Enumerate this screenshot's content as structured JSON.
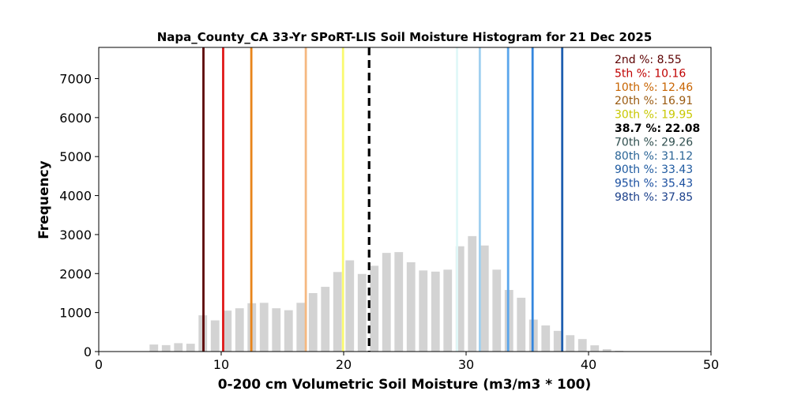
{
  "chart_data": {
    "type": "bar",
    "title": "Napa_County_CA 33-Yr SPoRT-LIS Soil Moisture Histogram for 21 Dec 2025",
    "xlabel": "0-200 cm Volumetric Soil Moisture (m3/m3 * 100)",
    "ylabel": "Frequency",
    "xlim": [
      0,
      50
    ],
    "ylim": [
      0,
      7800
    ],
    "xticks": [
      0,
      10,
      20,
      30,
      40,
      50
    ],
    "yticks": [
      0,
      1000,
      2000,
      3000,
      4000,
      5000,
      6000,
      7000
    ],
    "bar_color": "#d3d3d3",
    "bar_width": 0.7,
    "bins": [
      {
        "x": 4.5,
        "count": 180
      },
      {
        "x": 5.5,
        "count": 165
      },
      {
        "x": 6.5,
        "count": 215
      },
      {
        "x": 7.5,
        "count": 200
      },
      {
        "x": 8.5,
        "count": 930
      },
      {
        "x": 9.5,
        "count": 800
      },
      {
        "x": 10.5,
        "count": 1050
      },
      {
        "x": 11.5,
        "count": 1110
      },
      {
        "x": 12.5,
        "count": 1240
      },
      {
        "x": 13.5,
        "count": 1250
      },
      {
        "x": 14.5,
        "count": 1110
      },
      {
        "x": 15.5,
        "count": 1060
      },
      {
        "x": 16.5,
        "count": 1250
      },
      {
        "x": 17.5,
        "count": 1500
      },
      {
        "x": 18.5,
        "count": 1660
      },
      {
        "x": 19.5,
        "count": 2040
      },
      {
        "x": 20.5,
        "count": 2340
      },
      {
        "x": 21.5,
        "count": 1990
      },
      {
        "x": 22.5,
        "count": 2200
      },
      {
        "x": 23.5,
        "count": 2530
      },
      {
        "x": 24.5,
        "count": 2550
      },
      {
        "x": 25.5,
        "count": 2290
      },
      {
        "x": 26.5,
        "count": 2080
      },
      {
        "x": 27.5,
        "count": 2050
      },
      {
        "x": 28.5,
        "count": 2100
      },
      {
        "x": 29.5,
        "count": 2700
      },
      {
        "x": 30.5,
        "count": 2960
      },
      {
        "x": 31.5,
        "count": 2720
      },
      {
        "x": 32.5,
        "count": 2100
      },
      {
        "x": 33.5,
        "count": 1580
      },
      {
        "x": 34.5,
        "count": 1380
      },
      {
        "x": 35.5,
        "count": 820
      },
      {
        "x": 36.5,
        "count": 670
      },
      {
        "x": 37.5,
        "count": 530
      },
      {
        "x": 38.5,
        "count": 420
      },
      {
        "x": 39.5,
        "count": 320
      },
      {
        "x": 40.5,
        "count": 160
      },
      {
        "x": 41.5,
        "count": 60
      },
      {
        "x": 42.5,
        "count": 20
      }
    ],
    "percentile_lines": [
      {
        "label": "2nd %: 8.55",
        "value": 8.55,
        "color": "#5c0000",
        "style": "solid"
      },
      {
        "label": "5th %: 10.16",
        "value": 10.16,
        "color": "#e01818",
        "style": "solid"
      },
      {
        "label": "10th %: 12.46",
        "value": 12.46,
        "color": "#e8841a",
        "style": "solid"
      },
      {
        "label": "20th %: 16.91",
        "value": 16.91,
        "color": "#f5b880",
        "style": "solid"
      },
      {
        "label": "30th %: 19.95",
        "value": 19.95,
        "color": "#fafa70",
        "style": "solid"
      },
      {
        "label": "38.7 %: 22.08",
        "value": 22.08,
        "color": "#000000",
        "style": "dashed"
      },
      {
        "label": "70th %: 29.26",
        "value": 29.26,
        "color": "#e0f8f8",
        "style": "solid"
      },
      {
        "label": "80th %: 31.12",
        "value": 31.12,
        "color": "#a0d0f0",
        "style": "solid"
      },
      {
        "label": "90th %: 33.43",
        "value": 33.43,
        "color": "#5aa6ec",
        "style": "solid"
      },
      {
        "label": "95th %: 35.43",
        "value": 35.43,
        "color": "#3386de",
        "style": "solid"
      },
      {
        "label": "98th %: 37.85",
        "value": 37.85,
        "color": "#1f5fb0",
        "style": "solid"
      }
    ],
    "label_colors": [
      "#5c0000",
      "#c00000",
      "#c86400",
      "#9a5a10",
      "#c8c800",
      "#000000",
      "#2f4f4f",
      "#2a6496",
      "#1e5aa0",
      "#1a4fa0",
      "#1a3f8a"
    ]
  }
}
